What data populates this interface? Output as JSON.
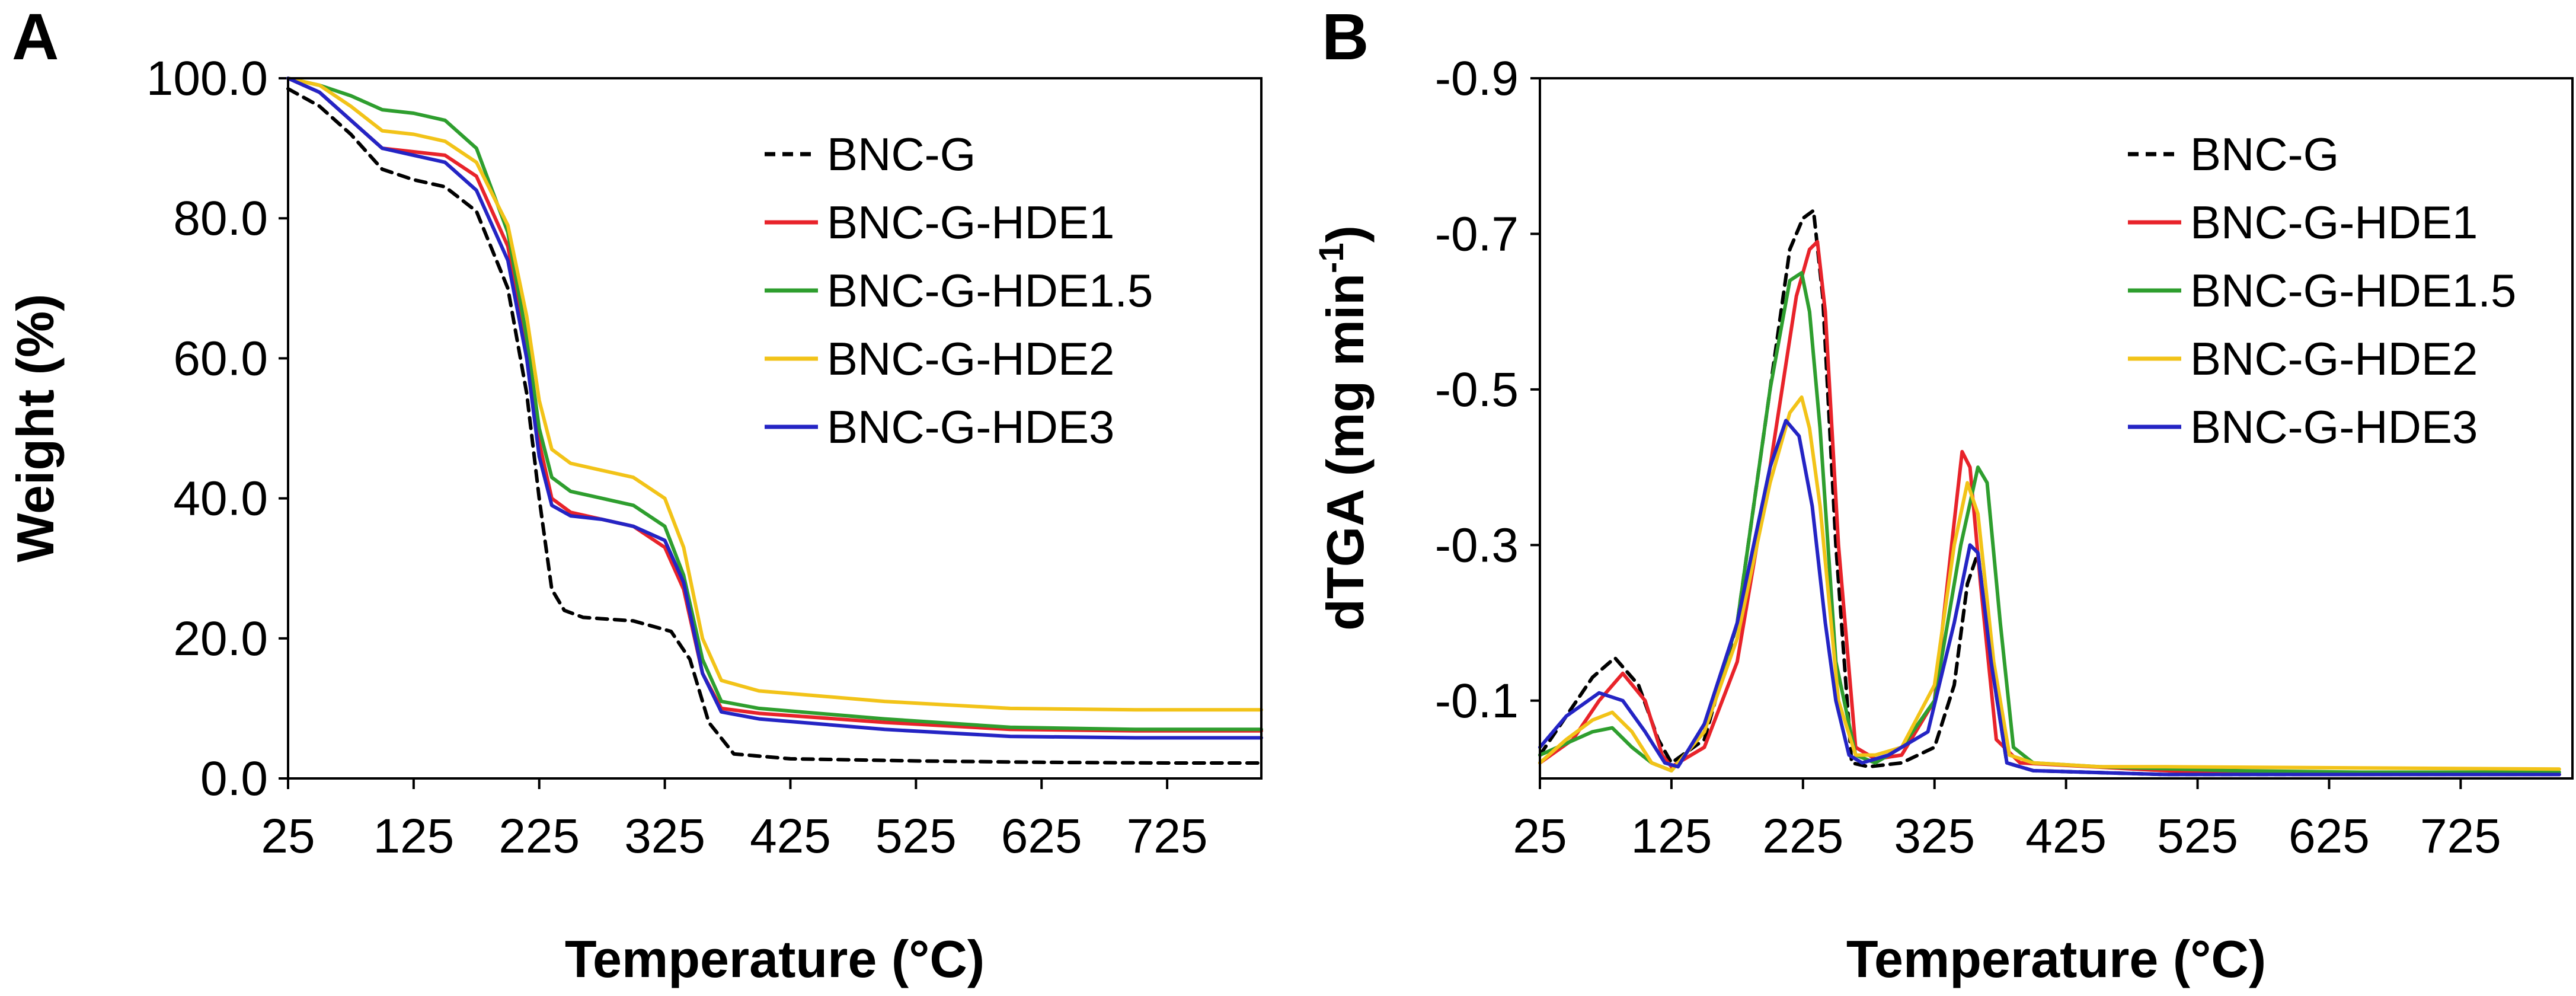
{
  "chart_data": [
    {
      "panel": "A",
      "type": "line",
      "title": "",
      "xlabel": "Temperature (°C)",
      "ylabel": "Weight (%)",
      "xlim": [
        25,
        800
      ],
      "ylim": [
        0,
        100
      ],
      "x_ticks": [
        "25",
        "125",
        "225",
        "325",
        "425",
        "525",
        "625",
        "725"
      ],
      "y_ticks": [
        "0.0",
        "20.0",
        "40.0",
        "60.0",
        "80.0",
        "100.0"
      ],
      "legend_position": "top-right",
      "series": [
        {
          "name": "BNC-G",
          "color": "#000000",
          "dashed": true,
          "x": [
            25,
            50,
            75,
            100,
            125,
            150,
            175,
            200,
            215,
            225,
            235,
            245,
            260,
            300,
            330,
            345,
            360,
            380,
            425,
            525,
            625,
            725,
            800
          ],
          "y": [
            98.5,
            96,
            92,
            87,
            85.5,
            84.5,
            81,
            70,
            55,
            40,
            27,
            24,
            23,
            22.5,
            21,
            17,
            8,
            3.5,
            2.8,
            2.5,
            2.3,
            2.2,
            2.2
          ]
        },
        {
          "name": "BNC-G-HDE1",
          "color": "#e8232a",
          "dashed": false,
          "x": [
            25,
            50,
            75,
            100,
            125,
            150,
            175,
            200,
            215,
            225,
            235,
            250,
            275,
            300,
            325,
            340,
            355,
            370,
            400,
            500,
            600,
            700,
            800
          ],
          "y": [
            100,
            98,
            94,
            90,
            89.5,
            89,
            86,
            76,
            62,
            48,
            40,
            38,
            37,
            36,
            33,
            27,
            15,
            10,
            9.3,
            8,
            7,
            6.8,
            6.8
          ]
        },
        {
          "name": "BNC-G-HDE1.5",
          "color": "#2e9e2e",
          "dashed": false,
          "x": [
            25,
            50,
            75,
            100,
            125,
            150,
            175,
            200,
            215,
            225,
            235,
            250,
            275,
            300,
            325,
            340,
            355,
            370,
            400,
            500,
            600,
            700,
            800
          ],
          "y": [
            100,
            99,
            97.5,
            95.5,
            95,
            94,
            90,
            78,
            63,
            50,
            43,
            41,
            40,
            39,
            36,
            29,
            17,
            11,
            10,
            8.5,
            7.3,
            7,
            7
          ]
        },
        {
          "name": "BNC-G-HDE2",
          "color": "#f2c318",
          "dashed": false,
          "x": [
            25,
            50,
            75,
            100,
            125,
            150,
            175,
            200,
            215,
            225,
            235,
            250,
            275,
            300,
            325,
            340,
            355,
            370,
            400,
            500,
            600,
            700,
            800
          ],
          "y": [
            100,
            99,
            96,
            92.5,
            92,
            91,
            88,
            79,
            66,
            54,
            47,
            45,
            44,
            43,
            40,
            33,
            20,
            14,
            12.5,
            11,
            10,
            9.8,
            9.8
          ]
        },
        {
          "name": "BNC-G-HDE3",
          "color": "#2424c4",
          "dashed": false,
          "x": [
            25,
            50,
            75,
            100,
            125,
            150,
            175,
            200,
            215,
            225,
            235,
            250,
            275,
            300,
            325,
            340,
            355,
            370,
            400,
            500,
            600,
            700,
            800
          ],
          "y": [
            100,
            98,
            94,
            90,
            89,
            88,
            84,
            74,
            60,
            46,
            39,
            37.5,
            37,
            36,
            34,
            28,
            15,
            9.5,
            8.5,
            7,
            6,
            5.8,
            5.8
          ]
        }
      ],
      "legend": [
        "BNC-G",
        "BNC-G-HDE1",
        "BNC-G-HDE1.5",
        "BNC-G-HDE2",
        "BNC-G-HDE3"
      ]
    },
    {
      "panel": "B",
      "type": "line",
      "title": "",
      "xlabel": "Temperature (°C)",
      "ylabel_main": "dTGA (mg min",
      "ylabel_sup": "-1",
      "ylabel_close": ")",
      "xlim": [
        25,
        810
      ],
      "ylim": [
        0,
        -0.9
      ],
      "x_ticks": [
        "25",
        "125",
        "225",
        "325",
        "425",
        "525",
        "625",
        "725"
      ],
      "y_ticks": [
        "-0.1",
        "-0.3",
        "-0.5",
        "-0.7",
        "-0.9"
      ],
      "legend_position": "top-right",
      "series": [
        {
          "name": "BNC-G",
          "color": "#000000",
          "dashed": true,
          "x": [
            25,
            45,
            65,
            82,
            100,
            115,
            125,
            150,
            175,
            200,
            215,
            225,
            233,
            240,
            250,
            262,
            275,
            300,
            325,
            340,
            350,
            358,
            368,
            380,
            400,
            500,
            600,
            700,
            800
          ],
          "y": [
            -0.03,
            -0.08,
            -0.13,
            -0.155,
            -0.12,
            -0.05,
            -0.02,
            -0.05,
            -0.2,
            -0.5,
            -0.68,
            -0.72,
            -0.73,
            -0.62,
            -0.3,
            -0.02,
            -0.015,
            -0.02,
            -0.04,
            -0.12,
            -0.25,
            -0.29,
            -0.15,
            -0.02,
            -0.01,
            -0.005,
            -0.005,
            -0.005,
            -0.005
          ]
        },
        {
          "name": "BNC-G-HDE1",
          "color": "#e8232a",
          "dashed": false,
          "x": [
            25,
            50,
            70,
            88,
            105,
            118,
            125,
            150,
            175,
            200,
            220,
            230,
            236,
            242,
            252,
            265,
            280,
            300,
            325,
            338,
            346,
            352,
            360,
            372,
            390,
            500,
            600,
            700,
            800
          ],
          "y": [
            -0.02,
            -0.05,
            -0.1,
            -0.135,
            -0.1,
            -0.03,
            -0.015,
            -0.04,
            -0.15,
            -0.4,
            -0.62,
            -0.68,
            -0.69,
            -0.6,
            -0.3,
            -0.04,
            -0.025,
            -0.03,
            -0.1,
            -0.3,
            -0.42,
            -0.4,
            -0.25,
            -0.05,
            -0.02,
            -0.01,
            -0.005,
            -0.005,
            -0.005
          ]
        },
        {
          "name": "BNC-G-HDE1.5",
          "color": "#2e9e2e",
          "dashed": false,
          "x": [
            25,
            45,
            65,
            80,
            95,
            110,
            125,
            150,
            175,
            200,
            215,
            224,
            230,
            238,
            250,
            265,
            280,
            300,
            325,
            345,
            358,
            365,
            375,
            385,
            400,
            450,
            550,
            650,
            735,
            800
          ],
          "y": [
            -0.03,
            -0.045,
            -0.06,
            -0.065,
            -0.04,
            -0.02,
            -0.01,
            -0.06,
            -0.2,
            -0.5,
            -0.64,
            -0.65,
            -0.6,
            -0.45,
            -0.15,
            -0.03,
            -0.02,
            -0.04,
            -0.1,
            -0.3,
            -0.4,
            -0.38,
            -0.2,
            -0.04,
            -0.02,
            -0.015,
            -0.01,
            -0.008,
            -0.008,
            -0.008
          ]
        },
        {
          "name": "BNC-G-HDE2",
          "color": "#f2c318",
          "dashed": false,
          "x": [
            25,
            45,
            65,
            80,
            95,
            110,
            125,
            150,
            175,
            200,
            215,
            224,
            230,
            238,
            252,
            265,
            280,
            300,
            325,
            340,
            350,
            358,
            370,
            382,
            400,
            450,
            500,
            800
          ],
          "y": [
            -0.02,
            -0.05,
            -0.075,
            -0.085,
            -0.06,
            -0.02,
            -0.01,
            -0.06,
            -0.18,
            -0.38,
            -0.47,
            -0.49,
            -0.45,
            -0.35,
            -0.1,
            -0.03,
            -0.03,
            -0.04,
            -0.12,
            -0.3,
            -0.38,
            -0.34,
            -0.15,
            -0.03,
            -0.02,
            -0.015,
            -0.015,
            -0.012
          ]
        },
        {
          "name": "BNC-G-HDE3",
          "color": "#2424c4",
          "dashed": false,
          "x": [
            25,
            45,
            70,
            88,
            105,
            120,
            130,
            150,
            175,
            200,
            212,
            222,
            232,
            242,
            250,
            260,
            270,
            290,
            320,
            340,
            352,
            358,
            368,
            380,
            400,
            500,
            600,
            700,
            800
          ],
          "y": [
            -0.04,
            -0.08,
            -0.11,
            -0.1,
            -0.06,
            -0.02,
            -0.015,
            -0.07,
            -0.2,
            -0.4,
            -0.46,
            -0.44,
            -0.35,
            -0.2,
            -0.1,
            -0.03,
            -0.02,
            -0.03,
            -0.06,
            -0.2,
            -0.3,
            -0.29,
            -0.15,
            -0.02,
            -0.01,
            -0.005,
            -0.005,
            -0.005,
            -0.005
          ]
        }
      ],
      "legend": [
        "BNC-G",
        "BNC-G-HDE1",
        "BNC-G-HDE1.5",
        "BNC-G-HDE2",
        "BNC-G-HDE3"
      ]
    }
  ]
}
